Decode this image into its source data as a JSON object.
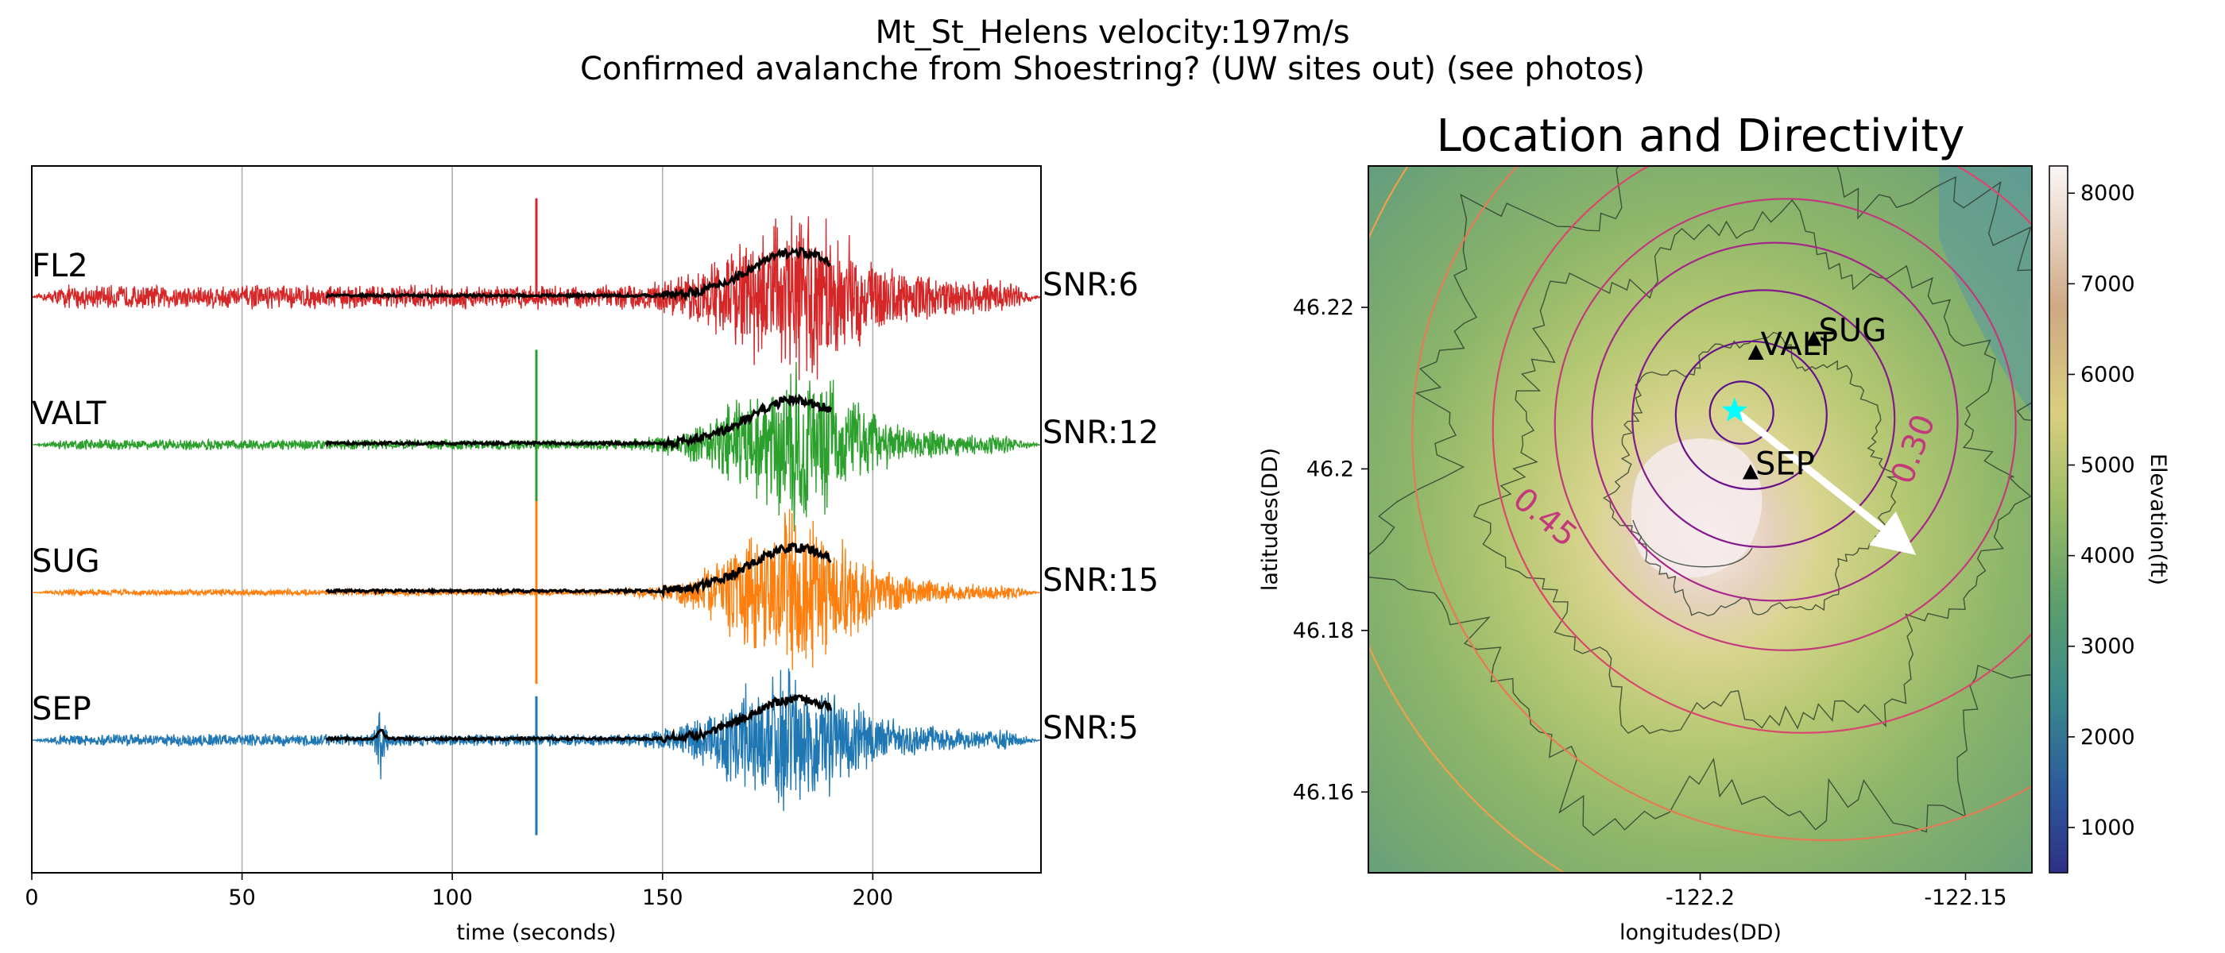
{
  "figure": {
    "title_line1": "Mt_St_Helens velocity:197m/s",
    "title_line2": "Confirmed avalanche from Shoestring? (UW sites out) (see photos)"
  },
  "colors": {
    "FL2": "#d62728",
    "VALT": "#2ca02c",
    "SUG": "#ff7f0e",
    "SEP": "#1f77b4",
    "envelope": "#000000",
    "source_star": "#00ffff",
    "arrow": "#ffffff",
    "contour_inner": "#5b0f8a",
    "contour_outer": "#d9476f",
    "topo_lines": "#2b3a2b"
  },
  "chart_data": [
    {
      "type": "line",
      "subtype": "seismogram",
      "xlabel": "time (seconds)",
      "ylabel": "",
      "xlim": [
        0,
        240
      ],
      "xticks": [
        0,
        50,
        100,
        150,
        200
      ],
      "grid": "vertical",
      "series": [
        {
          "name": "FL2",
          "snr_label": "SNR:6",
          "base_amp": 0.18,
          "event_peak_time": 180,
          "event_peak_amp": 1.0,
          "spike_time": 120,
          "spike_top": 1.35,
          "spike_bottom": 0.0
        },
        {
          "name": "VALT",
          "snr_label": "SNR:12",
          "base_amp": 0.08,
          "event_peak_time": 180,
          "event_peak_amp": 1.0,
          "spike_time": 120,
          "spike_top": 1.3,
          "spike_bottom": -1.3
        },
        {
          "name": "SUG",
          "snr_label": "SNR:15",
          "base_amp": 0.05,
          "event_peak_time": 179,
          "event_peak_amp": 1.0,
          "spike_time": 120,
          "spike_top": 1.25,
          "spike_bottom": -1.25
        },
        {
          "name": "SEP",
          "snr_label": "SNR:5",
          "base_amp": 0.09,
          "event_peak_time": 178,
          "event_peak_amp": 0.9,
          "spike_time": 120,
          "spike_top": 0.6,
          "spike_bottom": -1.3
        }
      ],
      "envelope": {
        "start": 70,
        "end": 190,
        "peak_time": 181
      }
    },
    {
      "type": "map",
      "title": "Location and Directivity",
      "xlabel": "longitudes(DD)",
      "ylabel": "latitudes(DD)",
      "xlim": [
        -122.2625,
        -122.1375
      ],
      "ylim": [
        46.15,
        46.2375
      ],
      "xticks": [
        -122.2,
        -122.15
      ],
      "yticks": [
        46.16,
        46.18,
        46.2,
        46.22
      ],
      "colorbar": {
        "label": "Elevation(ft)",
        "range": [
          500,
          8300
        ],
        "ticks": [
          1000,
          2000,
          3000,
          4000,
          5000,
          6000,
          7000,
          8000
        ]
      },
      "summit": {
        "lon": -122.19,
        "lat": 46.199
      },
      "stations": [
        {
          "name": "VALT",
          "lon": -122.1895,
          "lat": 46.2143
        },
        {
          "name": "SUG",
          "lon": -122.1786,
          "lat": 46.216
        },
        {
          "name": "SEP",
          "lon": -122.1905,
          "lat": 46.1995
        }
      ],
      "source": {
        "lon": -122.1935,
        "lat": 46.2072
      },
      "directivity_arrow": {
        "from_lon": -122.1935,
        "from_lat": 46.2072,
        "to_lon": -122.1625,
        "to_lat": 46.191
      },
      "contour_labels": [
        {
          "text": "0.30",
          "lon": -122.158,
          "lat": 46.202,
          "angle": -70
        },
        {
          "text": "0.45",
          "lon": -122.2305,
          "lat": 46.193,
          "angle": 40
        }
      ]
    }
  ]
}
